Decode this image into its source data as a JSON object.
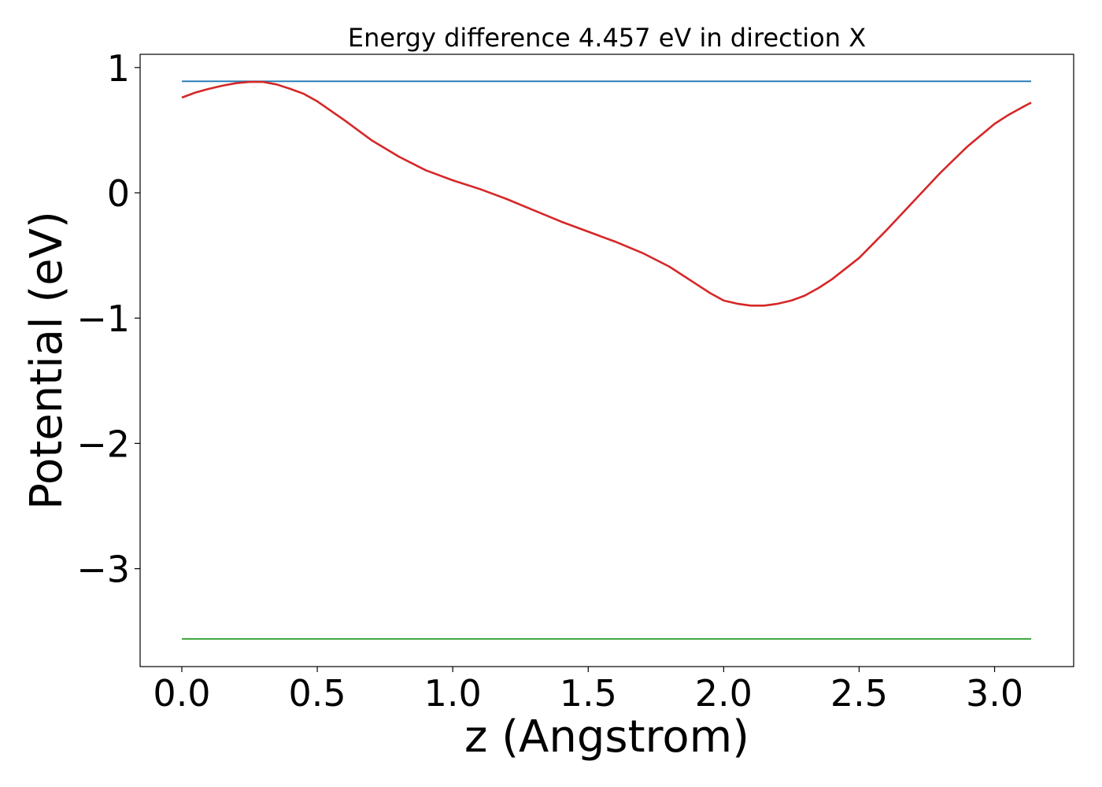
{
  "chart_data": {
    "type": "line",
    "title": "Energy difference 4.457 eV in direction X",
    "xlabel": "z (Angstrom)",
    "ylabel": "Potential (eV)",
    "xlim": [
      -0.31,
      3.135
    ],
    "ylim": [
      -3.8,
      1.1
    ],
    "xticks": [
      0.0,
      0.5,
      1.0,
      1.5,
      2.0,
      2.5,
      3.0
    ],
    "xtick_labels": [
      "0.0",
      "0.5",
      "1.0",
      "1.5",
      "2.0",
      "2.5",
      "3.0"
    ],
    "yticks": [
      1,
      0,
      -1,
      -2,
      -3
    ],
    "ytick_labels": [
      "1",
      "0",
      "−1",
      "−2",
      "−3"
    ],
    "grid": false,
    "series": [
      {
        "color": "#1f77b4",
        "x": [
          0.0,
          3.135
        ],
        "y": [
          0.89,
          0.89
        ]
      },
      {
        "color": "#2ca02c",
        "x": [
          0.0,
          3.135
        ],
        "y": [
          -3.56,
          -3.56
        ]
      },
      {
        "color": "#d62728",
        "x": [
          0.0,
          0.05,
          0.1,
          0.15,
          0.2,
          0.25,
          0.3,
          0.35,
          0.4,
          0.45,
          0.5,
          0.6,
          0.7,
          0.8,
          0.9,
          1.0,
          1.1,
          1.2,
          1.3,
          1.4,
          1.5,
          1.6,
          1.7,
          1.8,
          1.9,
          1.95,
          2.0,
          2.05,
          2.1,
          2.15,
          2.2,
          2.25,
          2.3,
          2.35,
          2.4,
          2.5,
          2.6,
          2.7,
          2.8,
          2.9,
          3.0,
          3.05,
          3.1,
          3.135
        ],
        "y": [
          0.76,
          0.8,
          0.83,
          0.855,
          0.875,
          0.885,
          0.885,
          0.865,
          0.83,
          0.79,
          0.73,
          0.58,
          0.42,
          0.29,
          0.18,
          0.1,
          0.03,
          -0.05,
          -0.14,
          -0.23,
          -0.31,
          -0.39,
          -0.48,
          -0.59,
          -0.73,
          -0.8,
          -0.86,
          -0.885,
          -0.9,
          -0.9,
          -0.885,
          -0.86,
          -0.82,
          -0.76,
          -0.69,
          -0.52,
          -0.3,
          -0.07,
          0.16,
          0.37,
          0.55,
          0.62,
          0.68,
          0.72
        ]
      }
    ]
  }
}
